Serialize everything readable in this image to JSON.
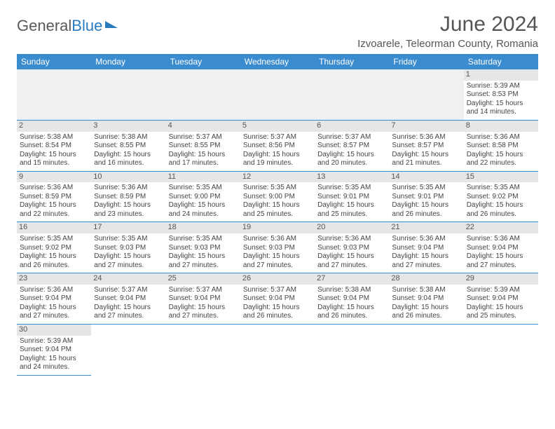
{
  "logo": {
    "text_gray": "General",
    "text_blue": "Blue"
  },
  "title": "June 2024",
  "location": "Izvoarele, Teleorman County, Romania",
  "colors": {
    "header_bg": "#3b8bcf",
    "header_fg": "#ffffff",
    "daynum_bg": "#e6e6e6",
    "border": "#3b8bcf",
    "empty_bg": "#f0f0f0"
  },
  "day_headers": [
    "Sunday",
    "Monday",
    "Tuesday",
    "Wednesday",
    "Thursday",
    "Friday",
    "Saturday"
  ],
  "weeks": [
    [
      null,
      null,
      null,
      null,
      null,
      null,
      {
        "n": "1",
        "sunrise": "5:39 AM",
        "sunset": "8:53 PM",
        "dl1": "15 hours",
        "dl2": "and 14 minutes."
      }
    ],
    [
      {
        "n": "2",
        "sunrise": "5:38 AM",
        "sunset": "8:54 PM",
        "dl1": "15 hours",
        "dl2": "and 15 minutes."
      },
      {
        "n": "3",
        "sunrise": "5:38 AM",
        "sunset": "8:55 PM",
        "dl1": "15 hours",
        "dl2": "and 16 minutes."
      },
      {
        "n": "4",
        "sunrise": "5:37 AM",
        "sunset": "8:55 PM",
        "dl1": "15 hours",
        "dl2": "and 17 minutes."
      },
      {
        "n": "5",
        "sunrise": "5:37 AM",
        "sunset": "8:56 PM",
        "dl1": "15 hours",
        "dl2": "and 19 minutes."
      },
      {
        "n": "6",
        "sunrise": "5:37 AM",
        "sunset": "8:57 PM",
        "dl1": "15 hours",
        "dl2": "and 20 minutes."
      },
      {
        "n": "7",
        "sunrise": "5:36 AM",
        "sunset": "8:57 PM",
        "dl1": "15 hours",
        "dl2": "and 21 minutes."
      },
      {
        "n": "8",
        "sunrise": "5:36 AM",
        "sunset": "8:58 PM",
        "dl1": "15 hours",
        "dl2": "and 22 minutes."
      }
    ],
    [
      {
        "n": "9",
        "sunrise": "5:36 AM",
        "sunset": "8:59 PM",
        "dl1": "15 hours",
        "dl2": "and 22 minutes."
      },
      {
        "n": "10",
        "sunrise": "5:36 AM",
        "sunset": "8:59 PM",
        "dl1": "15 hours",
        "dl2": "and 23 minutes."
      },
      {
        "n": "11",
        "sunrise": "5:35 AM",
        "sunset": "9:00 PM",
        "dl1": "15 hours",
        "dl2": "and 24 minutes."
      },
      {
        "n": "12",
        "sunrise": "5:35 AM",
        "sunset": "9:00 PM",
        "dl1": "15 hours",
        "dl2": "and 25 minutes."
      },
      {
        "n": "13",
        "sunrise": "5:35 AM",
        "sunset": "9:01 PM",
        "dl1": "15 hours",
        "dl2": "and 25 minutes."
      },
      {
        "n": "14",
        "sunrise": "5:35 AM",
        "sunset": "9:01 PM",
        "dl1": "15 hours",
        "dl2": "and 26 minutes."
      },
      {
        "n": "15",
        "sunrise": "5:35 AM",
        "sunset": "9:02 PM",
        "dl1": "15 hours",
        "dl2": "and 26 minutes."
      }
    ],
    [
      {
        "n": "16",
        "sunrise": "5:35 AM",
        "sunset": "9:02 PM",
        "dl1": "15 hours",
        "dl2": "and 26 minutes."
      },
      {
        "n": "17",
        "sunrise": "5:35 AM",
        "sunset": "9:03 PM",
        "dl1": "15 hours",
        "dl2": "and 27 minutes."
      },
      {
        "n": "18",
        "sunrise": "5:35 AM",
        "sunset": "9:03 PM",
        "dl1": "15 hours",
        "dl2": "and 27 minutes."
      },
      {
        "n": "19",
        "sunrise": "5:36 AM",
        "sunset": "9:03 PM",
        "dl1": "15 hours",
        "dl2": "and 27 minutes."
      },
      {
        "n": "20",
        "sunrise": "5:36 AM",
        "sunset": "9:03 PM",
        "dl1": "15 hours",
        "dl2": "and 27 minutes."
      },
      {
        "n": "21",
        "sunrise": "5:36 AM",
        "sunset": "9:04 PM",
        "dl1": "15 hours",
        "dl2": "and 27 minutes."
      },
      {
        "n": "22",
        "sunrise": "5:36 AM",
        "sunset": "9:04 PM",
        "dl1": "15 hours",
        "dl2": "and 27 minutes."
      }
    ],
    [
      {
        "n": "23",
        "sunrise": "5:36 AM",
        "sunset": "9:04 PM",
        "dl1": "15 hours",
        "dl2": "and 27 minutes."
      },
      {
        "n": "24",
        "sunrise": "5:37 AM",
        "sunset": "9:04 PM",
        "dl1": "15 hours",
        "dl2": "and 27 minutes."
      },
      {
        "n": "25",
        "sunrise": "5:37 AM",
        "sunset": "9:04 PM",
        "dl1": "15 hours",
        "dl2": "and 27 minutes."
      },
      {
        "n": "26",
        "sunrise": "5:37 AM",
        "sunset": "9:04 PM",
        "dl1": "15 hours",
        "dl2": "and 26 minutes."
      },
      {
        "n": "27",
        "sunrise": "5:38 AM",
        "sunset": "9:04 PM",
        "dl1": "15 hours",
        "dl2": "and 26 minutes."
      },
      {
        "n": "28",
        "sunrise": "5:38 AM",
        "sunset": "9:04 PM",
        "dl1": "15 hours",
        "dl2": "and 26 minutes."
      },
      {
        "n": "29",
        "sunrise": "5:39 AM",
        "sunset": "9:04 PM",
        "dl1": "15 hours",
        "dl2": "and 25 minutes."
      }
    ],
    [
      {
        "n": "30",
        "sunrise": "5:39 AM",
        "sunset": "9:04 PM",
        "dl1": "15 hours",
        "dl2": "and 24 minutes."
      },
      null,
      null,
      null,
      null,
      null,
      null
    ]
  ],
  "labels": {
    "sunrise_prefix": "Sunrise: ",
    "sunset_prefix": "Sunset: ",
    "daylight_prefix": "Daylight: "
  }
}
